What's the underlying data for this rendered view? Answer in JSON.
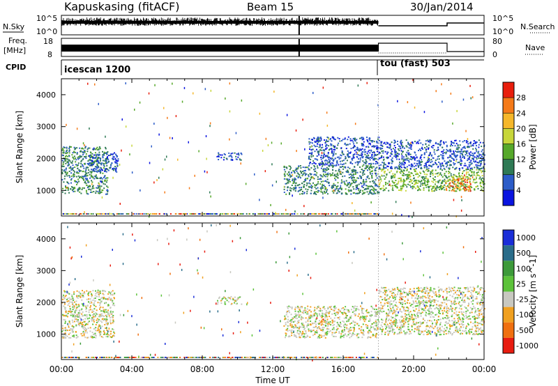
{
  "header": {
    "station": "Kapuskasing (fitACF)",
    "beam": "Beam 15",
    "date": "30/Jan/2014"
  },
  "params": {
    "nsky_label": "N.Sky",
    "nsearch_label": "N.Search",
    "ticks_nsky": [
      "10^5",
      "10^0"
    ],
    "ticks_nsearch": [
      "10^5",
      "10^0"
    ],
    "freq_label_top": "Freq.",
    "freq_label_unit": "[MHz]",
    "freq_ticks": [
      "18",
      "8"
    ],
    "nave_label": "Nave",
    "nave_ticks": [
      "80",
      "0"
    ],
    "cpid_label": "CPID",
    "cpid_segments": [
      {
        "name": "icescan 1200",
        "start_hour": 0
      },
      {
        "name": "tou (fast) 503",
        "start_hour": 18
      }
    ],
    "freq_level_mhz": 12,
    "nave_levels": [
      {
        "from_hour": 0,
        "to_hour": 18,
        "value": 0
      },
      {
        "from_hour": 18,
        "to_hour": 22,
        "value": 60
      },
      {
        "from_hour": 22,
        "to_hour": 24,
        "value": 5
      }
    ]
  },
  "chart_data": [
    {
      "type": "heatmap",
      "name": "power",
      "xlabel": "",
      "ylabel": "Slant Range [km]",
      "x_range_hours": [
        0,
        24
      ],
      "ylim": [
        200,
        4500
      ],
      "y_ticks": [
        1000,
        2000,
        3000,
        4000
      ],
      "colorbar": {
        "label": "Power [dB]",
        "ticks": [
          "4",
          "8",
          "12",
          "16",
          "20",
          "24",
          "28"
        ],
        "colors": [
          "#0a14e0",
          "#2c5cc8",
          "#2f7a55",
          "#56a82a",
          "#c7d63a",
          "#f5b72a",
          "#f57a18",
          "#e81e0c"
        ]
      },
      "regions": [
        {
          "x": [
            0.0,
            2.6
          ],
          "y": [
            900,
            2400
          ],
          "level": 2
        },
        {
          "x": [
            1.5,
            3.2
          ],
          "y": [
            1600,
            2200
          ],
          "level": 1
        },
        {
          "x": [
            8.8,
            10.2
          ],
          "y": [
            1950,
            2200
          ],
          "level": 1
        },
        {
          "x": [
            12.6,
            18.0
          ],
          "y": [
            900,
            1800
          ],
          "level": 2
        },
        {
          "x": [
            14.0,
            18.0
          ],
          "y": [
            1800,
            2700
          ],
          "level": 1
        },
        {
          "x": [
            18.0,
            24.0
          ],
          "y": [
            1000,
            1700
          ],
          "level": 3
        },
        {
          "x": [
            18.0,
            24.0
          ],
          "y": [
            1700,
            2600
          ],
          "level": 1
        },
        {
          "x": [
            21.8,
            23.2
          ],
          "y": [
            1000,
            1400
          ],
          "level": 6
        }
      ]
    },
    {
      "type": "heatmap",
      "name": "velocity",
      "xlabel": "Time UT",
      "ylabel": "Slant Range [km]",
      "x_range_hours": [
        0,
        24
      ],
      "ylim": [
        200,
        4500
      ],
      "y_ticks": [
        1000,
        2000,
        3000,
        4000
      ],
      "x_ticks": [
        "00:00",
        "04:00",
        "08:00",
        "12:00",
        "16:00",
        "20:00",
        "00:00"
      ],
      "colorbar": {
        "label": "Velocity [m s^-1]",
        "ticks": [
          "1000",
          "500",
          "100",
          "25",
          "-25",
          "-100",
          "-500",
          "-1000"
        ],
        "colors": [
          "#1a2ed8",
          "#2a6d8a",
          "#3d9a3a",
          "#5cc23a",
          "#c8c8c0",
          "#f0a020",
          "#f07010",
          "#e81c10"
        ]
      },
      "regions": [
        {
          "x": [
            0.0,
            3.0
          ],
          "y": [
            900,
            2400
          ],
          "level": 4
        },
        {
          "x": [
            8.8,
            10.2
          ],
          "y": [
            1950,
            2200
          ],
          "level": 4
        },
        {
          "x": [
            12.6,
            18.0
          ],
          "y": [
            900,
            1900
          ],
          "level": 4
        },
        {
          "x": [
            18.0,
            24.0
          ],
          "y": [
            1000,
            1800
          ],
          "level": 4
        },
        {
          "x": [
            18.0,
            24.0
          ],
          "y": [
            1800,
            2500
          ],
          "level": 4
        }
      ]
    }
  ]
}
